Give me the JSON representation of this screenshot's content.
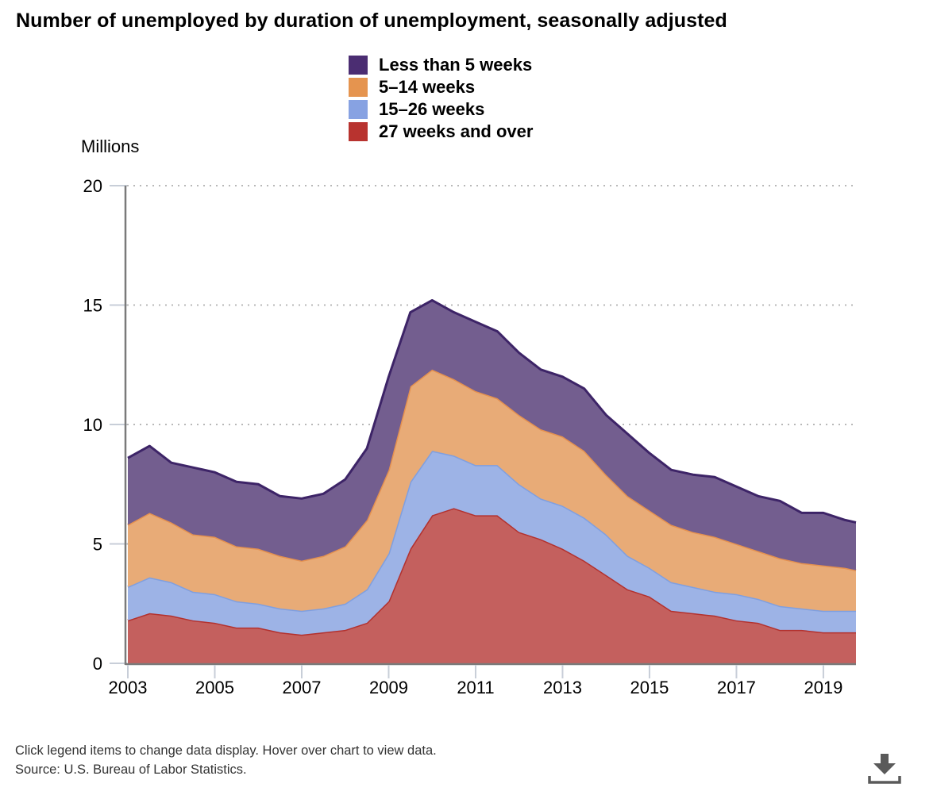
{
  "title": "Number of unemployed by duration of unemployment, seasonally adjusted",
  "footer": {
    "note": "Click legend items to change data display. Hover over chart to view data.",
    "source": "Source: U.S. Bureau of Labor Statistics."
  },
  "download_icon": "download-icon",
  "chart_data": {
    "type": "area",
    "stacked": true,
    "title": "Number of unemployed by duration of unemployment, seasonally adjusted",
    "xlabel": "",
    "ylabel": "Millions",
    "ylim": [
      0,
      20
    ],
    "xlim": [
      2003.0,
      2019.75
    ],
    "yticks": [
      0,
      5,
      10,
      15,
      20
    ],
    "xticks": [
      2003,
      2005,
      2007,
      2009,
      2011,
      2013,
      2015,
      2017,
      2019
    ],
    "grid": "horizontal-dotted",
    "legend_position": "top-center",
    "x": [
      2003.0,
      2003.5,
      2004.0,
      2004.5,
      2005.0,
      2005.5,
      2006.0,
      2006.5,
      2007.0,
      2007.5,
      2008.0,
      2008.5,
      2009.0,
      2009.5,
      2010.0,
      2010.5,
      2011.0,
      2011.5,
      2012.0,
      2012.5,
      2013.0,
      2013.5,
      2014.0,
      2014.5,
      2015.0,
      2015.5,
      2016.0,
      2016.5,
      2017.0,
      2017.5,
      2018.0,
      2018.5,
      2019.0,
      2019.5,
      2019.75
    ],
    "series": [
      {
        "name": "27 weeks and over",
        "color": "#c4605e",
        "line_color": "#b3312e",
        "values": [
          1.8,
          2.1,
          2.0,
          1.8,
          1.7,
          1.5,
          1.5,
          1.3,
          1.2,
          1.3,
          1.4,
          1.7,
          2.6,
          4.8,
          6.2,
          6.5,
          6.2,
          6.2,
          5.5,
          5.2,
          4.8,
          4.3,
          3.7,
          3.1,
          2.8,
          2.2,
          2.1,
          2.0,
          1.8,
          1.7,
          1.4,
          1.4,
          1.3,
          1.3,
          1.3
        ]
      },
      {
        "name": "15–26 weeks",
        "color": "#9db3e6",
        "line_color": "#7f9fe0",
        "values": [
          1.4,
          1.5,
          1.4,
          1.2,
          1.2,
          1.1,
          1.0,
          1.0,
          1.0,
          1.0,
          1.1,
          1.4,
          2.0,
          2.8,
          2.7,
          2.2,
          2.1,
          2.1,
          2.0,
          1.7,
          1.8,
          1.8,
          1.7,
          1.4,
          1.2,
          1.2,
          1.1,
          1.0,
          1.1,
          1.0,
          1.0,
          0.9,
          0.9,
          0.9,
          0.9
        ]
      },
      {
        "name": "5–14 weeks",
        "color": "#e8ab77",
        "line_color": "#e5914f",
        "values": [
          2.6,
          2.7,
          2.5,
          2.4,
          2.4,
          2.3,
          2.3,
          2.2,
          2.1,
          2.2,
          2.4,
          2.9,
          3.5,
          4.0,
          3.4,
          3.2,
          3.1,
          2.8,
          2.9,
          2.9,
          2.9,
          2.8,
          2.5,
          2.5,
          2.4,
          2.4,
          2.3,
          2.3,
          2.1,
          2.0,
          2.0,
          1.9,
          1.9,
          1.8,
          1.7
        ]
      },
      {
        "name": "Less than 5 weeks",
        "color": "#735e8f",
        "line_color": "#3d2467",
        "values": [
          2.8,
          2.8,
          2.5,
          2.8,
          2.7,
          2.7,
          2.7,
          2.5,
          2.6,
          2.6,
          2.8,
          3.0,
          3.9,
          3.1,
          2.9,
          2.8,
          2.9,
          2.8,
          2.6,
          2.5,
          2.5,
          2.6,
          2.5,
          2.6,
          2.4,
          2.3,
          2.4,
          2.5,
          2.4,
          2.3,
          2.4,
          2.1,
          2.2,
          2.0,
          2.0
        ]
      }
    ],
    "legend": [
      {
        "label": "Less than 5 weeks",
        "color": "#4b2d72"
      },
      {
        "label": "5–14 weeks",
        "color": "#e5944f"
      },
      {
        "label": "15–26 weeks",
        "color": "#87a2e2"
      },
      {
        "label": "27 weeks and over",
        "color": "#b8332f"
      }
    ]
  }
}
